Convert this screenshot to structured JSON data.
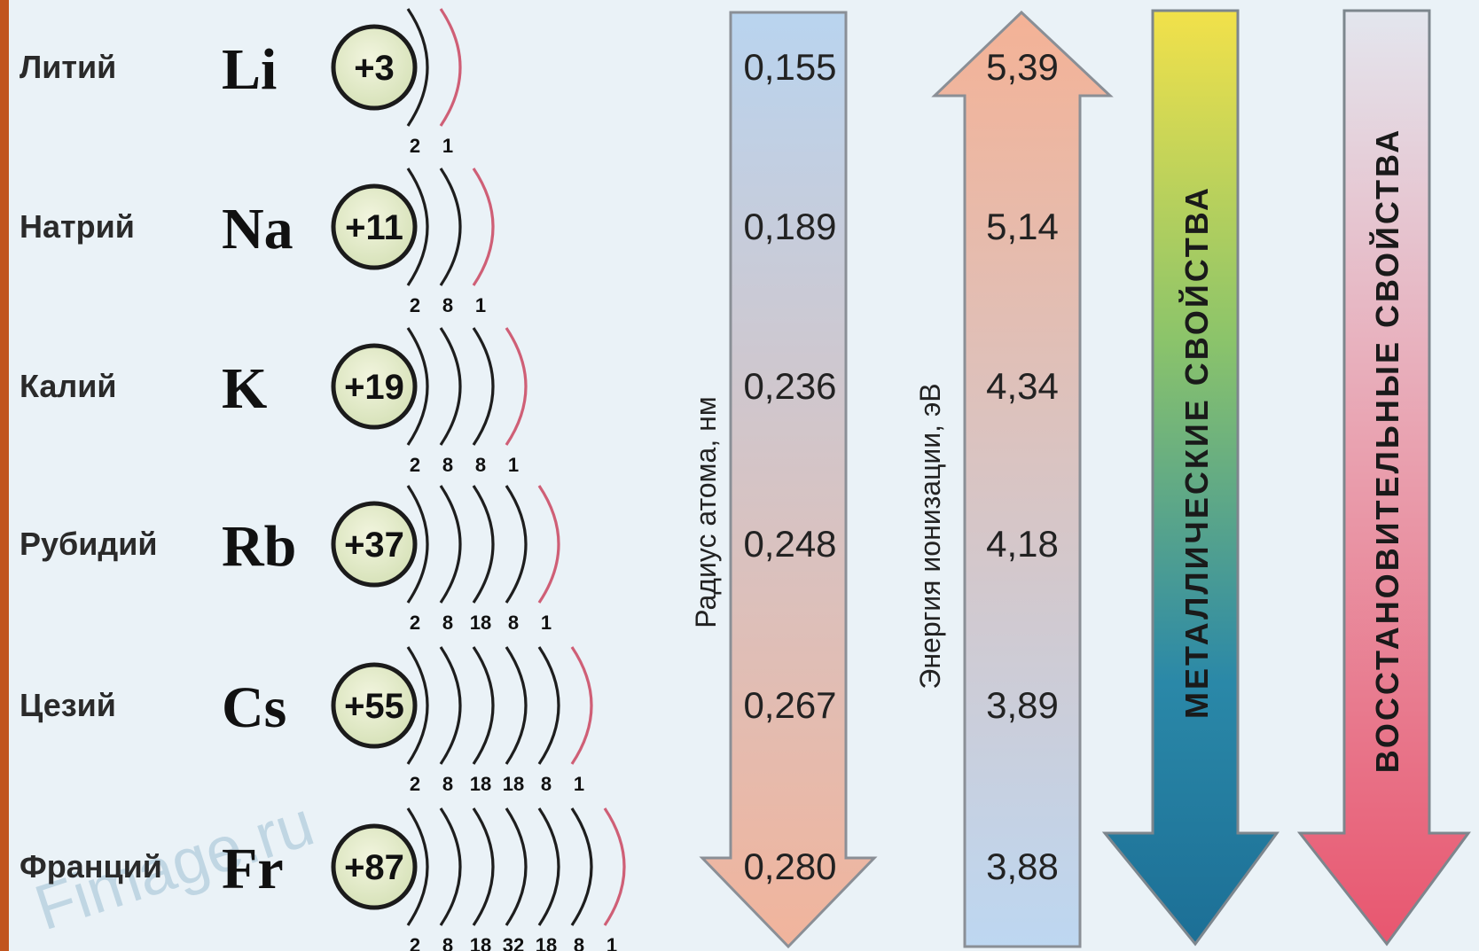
{
  "elements": [
    {
      "name": "Литий",
      "symbol": "Li",
      "charge": "+3",
      "shells": [
        "2",
        "1"
      ]
    },
    {
      "name": "Натрий",
      "symbol": "Na",
      "charge": "+11",
      "shells": [
        "2",
        "8",
        "1"
      ]
    },
    {
      "name": "Калий",
      "symbol": "K",
      "charge": "+19",
      "shells": [
        "2",
        "8",
        "8",
        "1"
      ]
    },
    {
      "name": "Рубидий",
      "symbol": "Rb",
      "charge": "+37",
      "shells": [
        "2",
        "8",
        "18",
        "8",
        "1"
      ]
    },
    {
      "name": "Цезий",
      "symbol": "Cs",
      "charge": "+55",
      "shells": [
        "2",
        "8",
        "18",
        "18",
        "8",
        "1"
      ]
    },
    {
      "name": "Франций",
      "symbol": "Fr",
      "charge": "+87",
      "shells": [
        "2",
        "8",
        "18",
        "32",
        "18",
        "8",
        "1"
      ]
    }
  ],
  "radius_arrow": {
    "label": "Радиус атома, нм",
    "values": [
      "0,155",
      "0,189",
      "0,236",
      "0,248",
      "0,267",
      "0,280"
    ],
    "direction": "down",
    "colors": [
      "#b9d4ef",
      "#f1b49c"
    ]
  },
  "ionization_arrow": {
    "label": "Энергия ионизации, эВ",
    "values": [
      "5,39",
      "5,14",
      "4,34",
      "4,18",
      "3,89",
      "3,88"
    ],
    "direction": "up",
    "colors": [
      "#f4b296",
      "#bdd7f1"
    ]
  },
  "metallic_arrow": {
    "label": "МЕТАЛЛИЧЕСКИЕ СВОЙСТВА",
    "direction": "down",
    "colors": [
      "#f2e14a",
      "#8cc46a",
      "#2a88a8",
      "#1c6f96"
    ]
  },
  "reducing_arrow": {
    "label": "ВОССТАНОВИТЕЛЬНЫЕ СВОЙСТВА",
    "direction": "down",
    "colors": [
      "#e3e6ee",
      "#e9a4b2",
      "#e8566f"
    ]
  },
  "watermark": "Fimage.ru"
}
